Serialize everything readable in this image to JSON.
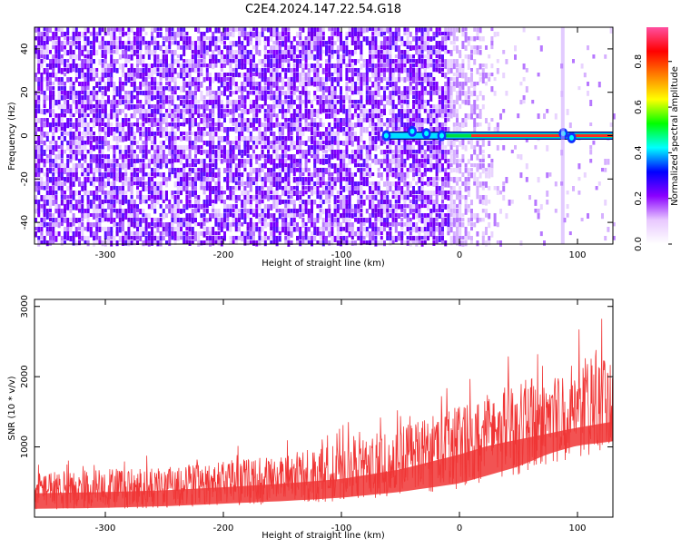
{
  "figure": {
    "title": "C2E4.2024.147.22.54.G18"
  },
  "chart_data": [
    {
      "type": "heatmap",
      "xlabel": "Height of straight line (km)",
      "ylabel": "Frequency (Hz)",
      "xlim": [
        -360,
        130
      ],
      "ylim": [
        -50,
        50
      ],
      "xticks": [
        -300,
        -200,
        -100,
        0,
        100
      ],
      "yticks": [
        -40,
        -20,
        0,
        20,
        40
      ],
      "grid": false,
      "colorbar": {
        "label": "Normalized spectral amplitude",
        "range": [
          0,
          0.95
        ],
        "ticks": [
          "0.0",
          "0.2",
          "0.4",
          "0.6",
          "0.8"
        ],
        "colormap": [
          "#ffffff",
          "#e8c8ff",
          "#8a00ff",
          "#0000ff",
          "#00ffff",
          "#00ff00",
          "#ffff00",
          "#ff8000",
          "#ff0000",
          "#ff4fa0"
        ]
      },
      "features": {
        "noise_region_x": [
          -360,
          -10
        ],
        "noise_fade_x": [
          -10,
          40
        ],
        "signal_line_x": [
          -65,
          130
        ],
        "signal_line_y": 0,
        "signal_line_peak_amplitude": 0.9
      }
    },
    {
      "type": "area",
      "xlabel": "Height of straight line (km)",
      "ylabel": "SNR (10 * v/v)",
      "xlim": [
        -360,
        130
      ],
      "ylim": [
        0,
        3100
      ],
      "xticks": [
        -300,
        -200,
        -100,
        0,
        100
      ],
      "yticks": [
        1000,
        2000,
        3000
      ],
      "grid": false,
      "series": [
        {
          "color": "#f03535",
          "x": [
            -360,
            -300,
            -250,
            -200,
            -150,
            -100,
            -50,
            0,
            25,
            50,
            75,
            100,
            130
          ],
          "y_low": [
            100,
            110,
            130,
            160,
            190,
            230,
            300,
            400,
            500,
            600,
            750,
            850,
            900
          ],
          "y_mean": [
            400,
            420,
            450,
            500,
            560,
            640,
            800,
            1050,
            1200,
            1300,
            1400,
            1500,
            1600
          ],
          "y_peak": [
            800,
            870,
            920,
            1000,
            1100,
            1350,
            1600,
            2000,
            2200,
            2350,
            2450,
            2700,
            3000
          ]
        }
      ]
    }
  ]
}
